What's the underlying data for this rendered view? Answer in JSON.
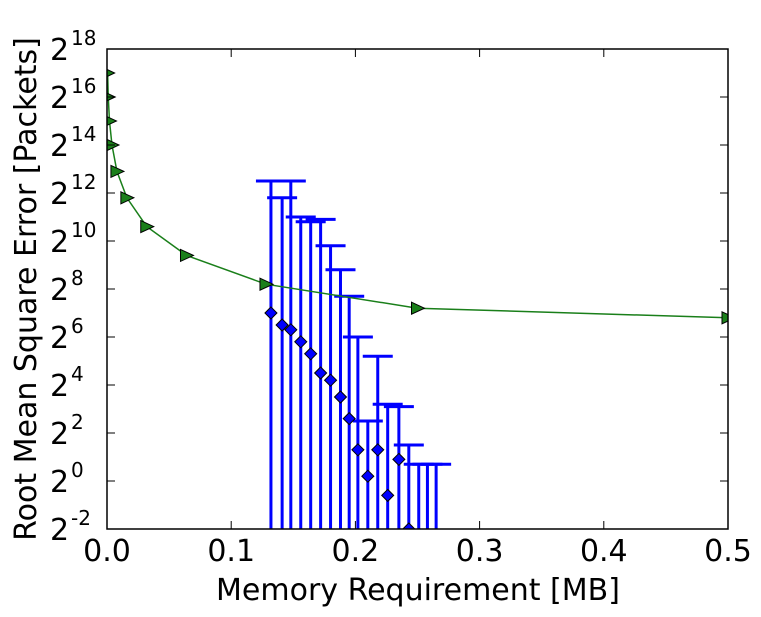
{
  "chart_data": {
    "type": "line",
    "xlabel": "Memory Requirement [MB]",
    "ylabel": "Root Mean Square Error [Packets]",
    "xlim": [
      0.0,
      0.5
    ],
    "ylim_log2": [
      -2,
      18
    ],
    "y_scale": "log2",
    "grid": false,
    "x_ticks": [
      {
        "value": 0.0,
        "label": "0.0"
      },
      {
        "value": 0.1,
        "label": "0.1"
      },
      {
        "value": 0.2,
        "label": "0.2"
      },
      {
        "value": 0.3,
        "label": "0.3"
      },
      {
        "value": 0.4,
        "label": "0.4"
      },
      {
        "value": 0.5,
        "label": "0.5"
      }
    ],
    "y_ticks": [
      {
        "exp": -2,
        "base": "2",
        "sup": "-2"
      },
      {
        "exp": 0,
        "base": "2",
        "sup": "0"
      },
      {
        "exp": 2,
        "base": "2",
        "sup": "2"
      },
      {
        "exp": 4,
        "base": "2",
        "sup": "4"
      },
      {
        "exp": 6,
        "base": "2",
        "sup": "6"
      },
      {
        "exp": 8,
        "base": "2",
        "sup": "8"
      },
      {
        "exp": 10,
        "base": "2",
        "sup": "10"
      },
      {
        "exp": 12,
        "base": "2",
        "sup": "12"
      },
      {
        "exp": 14,
        "base": "2",
        "sup": "14"
      },
      {
        "exp": 16,
        "base": "2",
        "sup": "16"
      },
      {
        "exp": 18,
        "base": "2",
        "sup": "18"
      }
    ],
    "series": [
      {
        "marker": "triangle-right",
        "color": "#1a7f1a",
        "x": [
          0.0005,
          0.001,
          0.002,
          0.004,
          0.008,
          0.016,
          0.032,
          0.064,
          0.128,
          0.25,
          0.5
        ],
        "y_log2": [
          17.0,
          16.0,
          15.0,
          14.0,
          12.9,
          11.8,
          10.6,
          9.4,
          8.2,
          7.2,
          6.8
        ]
      },
      {
        "marker": "diamond",
        "color": "#0000ff",
        "error_bars": true,
        "points": [
          {
            "x": 0.132,
            "y_log2": 7.0,
            "upper_log2": 12.5
          },
          {
            "x": 0.141,
            "y_log2": 6.5,
            "upper_log2": 11.8
          },
          {
            "x": 0.148,
            "y_log2": 6.3,
            "upper_log2": 12.5
          },
          {
            "x": 0.156,
            "y_log2": 5.8,
            "upper_log2": 11.0
          },
          {
            "x": 0.164,
            "y_log2": 5.3,
            "upper_log2": 10.8
          },
          {
            "x": 0.172,
            "y_log2": 4.5,
            "upper_log2": 10.9
          },
          {
            "x": 0.18,
            "y_log2": 4.2,
            "upper_log2": 9.8
          },
          {
            "x": 0.188,
            "y_log2": 3.5,
            "upper_log2": 8.8
          },
          {
            "x": 0.195,
            "y_log2": 2.6,
            "upper_log2": 7.7
          },
          {
            "x": 0.202,
            "y_log2": 1.3,
            "upper_log2": 6.0
          },
          {
            "x": 0.21,
            "y_log2": 0.2,
            "upper_log2": 2.5
          },
          {
            "x": 0.218,
            "y_log2": 1.3,
            "upper_log2": 5.2
          },
          {
            "x": 0.226,
            "y_log2": -0.6,
            "upper_log2": 3.2
          },
          {
            "x": 0.235,
            "y_log2": 0.9,
            "upper_log2": 3.1
          },
          {
            "x": 0.243,
            "y_log2": -2.0,
            "upper_log2": 1.5
          }
        ],
        "extra_bars": [
          {
            "x": 0.251,
            "upper_log2": 0.7
          },
          {
            "x": 0.258,
            "upper_log2": 0.7
          },
          {
            "x": 0.265,
            "upper_log2": 0.7
          }
        ]
      }
    ]
  }
}
